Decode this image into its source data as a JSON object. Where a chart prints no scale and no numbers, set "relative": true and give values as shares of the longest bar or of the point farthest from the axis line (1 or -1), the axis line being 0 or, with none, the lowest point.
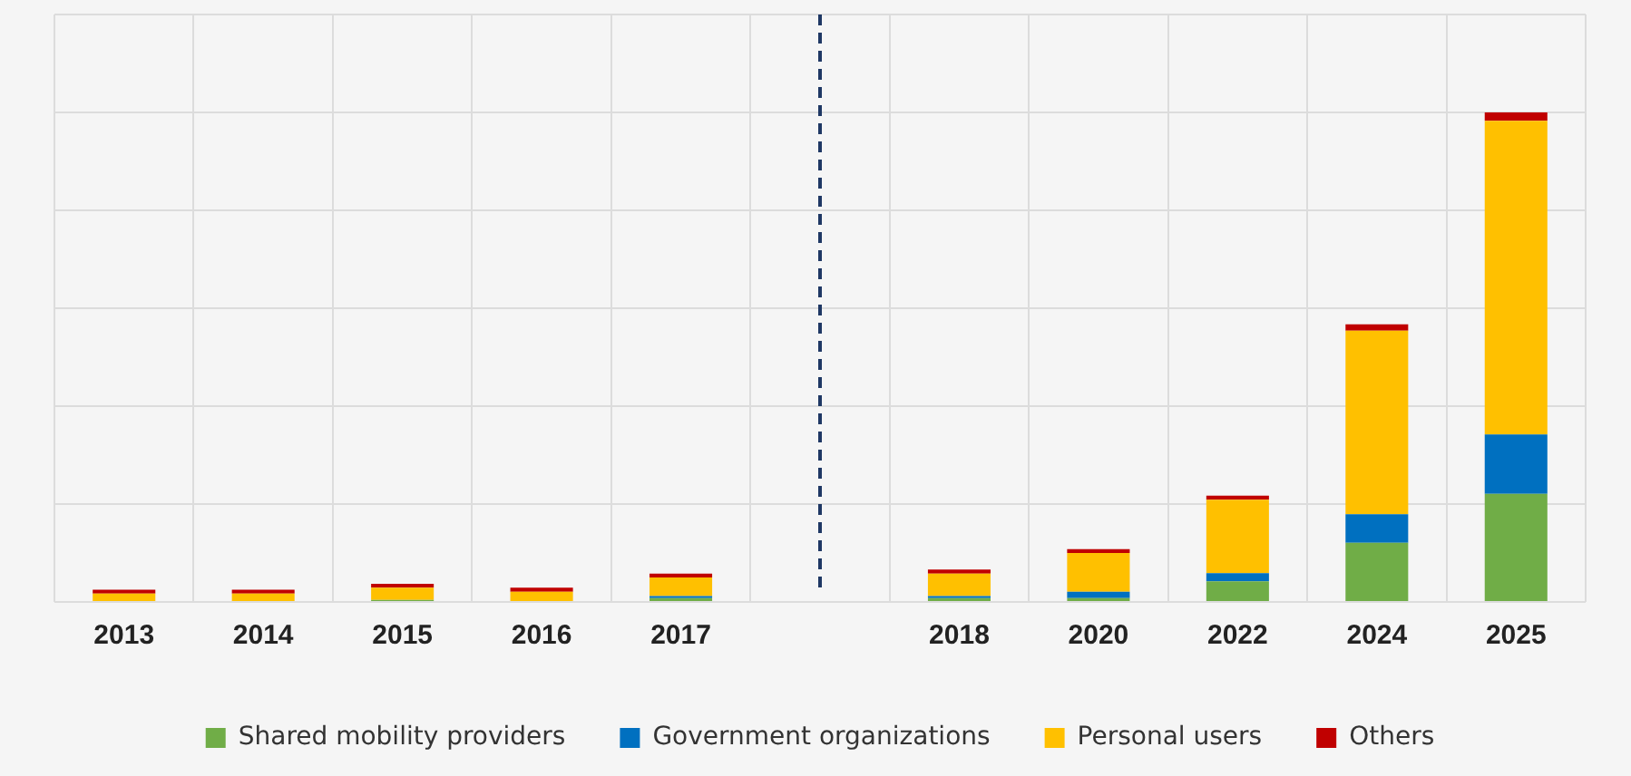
{
  "chart_data": {
    "type": "bar",
    "stacked": true,
    "relative": true,
    "grid": true,
    "legend": "bottom",
    "categories": [
      "2013",
      "2014",
      "2015",
      "2016",
      "2017",
      null,
      "2018",
      "2020",
      "2022",
      "2024",
      "2025"
    ],
    "series": [
      {
        "name": "Shared mobility providers",
        "color": "#70ad47",
        "values": [
          0,
          0,
          0.004,
          0,
          0.008,
          null,
          0.008,
          0.008,
          0.042,
          0.121,
          0.221
        ]
      },
      {
        "name": "Government organizations",
        "color": "#0070c0",
        "values": [
          0,
          0,
          0,
          0,
          0.004,
          null,
          0.004,
          0.013,
          0.017,
          0.058,
          0.121
        ]
      },
      {
        "name": "Personal users",
        "color": "#ffc000",
        "values": [
          0.017,
          0.017,
          0.025,
          0.021,
          0.038,
          null,
          0.046,
          0.079,
          0.15,
          0.375,
          0.641
        ]
      },
      {
        "name": "Others",
        "color": "#c00000",
        "values": [
          0.008,
          0.008,
          0.008,
          0.008,
          0.008,
          null,
          0.008,
          0.008,
          0.008,
          0.013,
          0.017
        ]
      }
    ]
  }
}
